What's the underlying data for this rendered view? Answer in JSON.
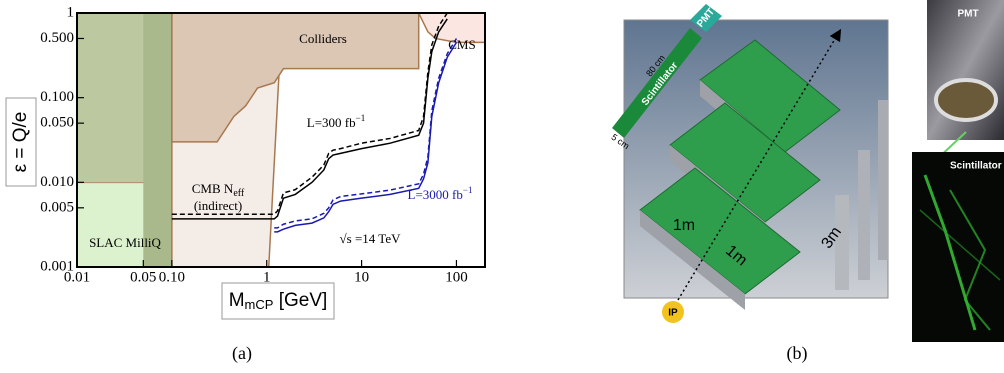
{
  "chart_data": {
    "type": "line",
    "xlabel": {
      "main": "M",
      "sub": "mCP",
      "unit": " [GeV]"
    },
    "ylabel": "ε = Q/e",
    "xscale": "log",
    "yscale": "log",
    "xlim": [
      0.01,
      200
    ],
    "ylim": [
      0.001,
      1
    ],
    "xticks": [
      0.01,
      0.05,
      {
        "value": 0.1,
        "label": "0.10"
      },
      1,
      10,
      100
    ],
    "yticks": [
      0.001,
      0.005,
      {
        "value": 0.01,
        "label": "0.010"
      },
      {
        "value": 0.05,
        "label": "0.050"
      },
      {
        "value": 0.1,
        "label": "0.100"
      },
      {
        "value": 0.5,
        "label": "0.500"
      },
      1
    ],
    "grid": false,
    "regions": [
      {
        "name": "SLAC MilliQ",
        "color": "#dcf2cf",
        "x": [
          0.01,
          0.1,
          0.1,
          0.01
        ],
        "values": [
          0.001,
          0.001,
          0.01,
          0.01
        ]
      },
      {
        "color": "#bcc9a0",
        "x": [
          0.01,
          0.1,
          0.1,
          0.01
        ],
        "values": [
          0.01,
          0.01,
          1,
          1
        ]
      },
      {
        "color": "#a9b98c",
        "x": [
          0.05,
          0.1,
          0.1,
          0.05
        ],
        "values": [
          0.001,
          0.001,
          1,
          1
        ]
      },
      {
        "name": "CMB N",
        "name_sub": "eff",
        "note": "(indirect)",
        "color": "#f4ece7",
        "x": [
          0.1,
          1.05,
          1.35,
          1.35,
          0.1
        ],
        "values": [
          0.001,
          0.001,
          0.2,
          1,
          1
        ]
      },
      {
        "name": "Colliders",
        "color": "#dcc6b4",
        "x": [
          0.1,
          0.1,
          0.3,
          0.45,
          0.6,
          0.8,
          1.2,
          1.5,
          40,
          40,
          0.1
        ],
        "values": [
          1,
          0.03,
          0.03,
          0.06,
          0.08,
          0.13,
          0.15,
          0.22,
          0.22,
          1,
          1
        ]
      },
      {
        "name": "CMS",
        "color": "#fbe6e2",
        "x": [
          40,
          50,
          60,
          100,
          200,
          200,
          40
        ],
        "values": [
          1,
          0.6,
          0.5,
          0.45,
          0.45,
          1,
          1
        ]
      }
    ],
    "series": [
      {
        "color": "#000000",
        "dash": false,
        "x": [
          0.1,
          1.2,
          1.3,
          1.5,
          2,
          3,
          4,
          4.5,
          5,
          6,
          10,
          20,
          40,
          45,
          50,
          55,
          65,
          80
        ],
        "values": [
          0.0037,
          0.0037,
          0.004,
          0.0065,
          0.0072,
          0.01,
          0.014,
          0.019,
          0.021,
          0.022,
          0.025,
          0.029,
          0.036,
          0.05,
          0.17,
          0.35,
          0.6,
          0.85
        ]
      },
      {
        "color": "#000000",
        "dash": true,
        "x": [
          0.1,
          1.2,
          1.3,
          1.5,
          2,
          3,
          4,
          4.5,
          5,
          6,
          10,
          20,
          40,
          45,
          50,
          55,
          65,
          80
        ],
        "values": [
          0.0042,
          0.0042,
          0.0046,
          0.0075,
          0.0082,
          0.0115,
          0.016,
          0.022,
          0.024,
          0.025,
          0.029,
          0.033,
          0.041,
          0.06,
          0.2,
          0.42,
          0.7,
          1
        ]
      },
      {
        "color": "#1a1ab0",
        "dash": false,
        "x": [
          1.2,
          1.3,
          1.5,
          2,
          3,
          4,
          4.5,
          5,
          6,
          10,
          20,
          40,
          45,
          50,
          55,
          65,
          80,
          100
        ],
        "values": [
          0.0026,
          0.0026,
          0.0028,
          0.0031,
          0.0033,
          0.0038,
          0.0045,
          0.0055,
          0.006,
          0.0065,
          0.0072,
          0.0085,
          0.011,
          0.017,
          0.06,
          0.15,
          0.3,
          0.45
        ]
      },
      {
        "color": "#1a1ab0",
        "dash": true,
        "x": [
          1.2,
          1.3,
          1.5,
          2,
          3,
          4,
          4.5,
          5,
          6,
          10,
          20,
          40,
          45,
          50,
          55,
          65,
          80,
          100
        ],
        "values": [
          0.0029,
          0.0029,
          0.0032,
          0.0035,
          0.0037,
          0.0043,
          0.005,
          0.0062,
          0.0068,
          0.0073,
          0.0081,
          0.0096,
          0.0125,
          0.02,
          0.07,
          0.17,
          0.33,
          0.5
        ]
      }
    ],
    "annotations": [
      {
        "text": "L=300 fb",
        "sup": "−1",
        "color": "#000000"
      },
      {
        "text": "L=3000 fb",
        "sup": "−1",
        "color": "#1a1ab0"
      },
      {
        "text": "√s =14 TeV",
        "color": "#000000"
      }
    ]
  },
  "diagram": {
    "labels": {
      "pmt": "PMT",
      "length": "80 cm",
      "scintillator": "Scintillator",
      "width": "5 cm",
      "dim1": "1m",
      "dim2": "1m",
      "dim3": "3m",
      "ip": "IP",
      "photo_pmt": "PMT",
      "photo_scintillator": "Scintillator"
    }
  },
  "figure": {
    "panel_labels": [
      "(a)",
      "(b)"
    ]
  }
}
